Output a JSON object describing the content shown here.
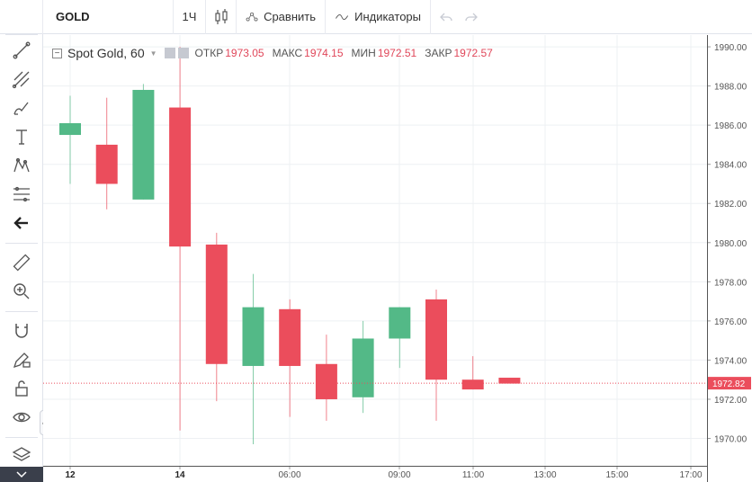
{
  "toolbar": {
    "symbol": "GOLD",
    "interval": "1Ч",
    "compare_label": "Сравнить",
    "indicators_label": "Индикаторы"
  },
  "left_toolbar": {
    "tools": [
      "crosshair-icon",
      "trendline-icon",
      "pitchfork-icon",
      "brush-icon",
      "text-icon",
      "pattern-icon",
      "fib-icon",
      "back-arrow-icon",
      "ruler-icon",
      "zoom-icon",
      "magnet-icon",
      "pencil-lock-icon",
      "lock-icon",
      "eye-icon",
      "layers-icon"
    ]
  },
  "legend": {
    "symbol": "Spot Gold, 60",
    "open_label": "ОТКР",
    "open_value": "1973.05",
    "high_label": "МАКС",
    "high_value": "1974.15",
    "low_label": "МИН",
    "low_value": "1972.51",
    "close_label": "ЗАКР",
    "close_value": "1972.57"
  },
  "chart_data": {
    "type": "candlestick",
    "candles": [
      {
        "open": 1985.5,
        "high": 1987.5,
        "low": 1983.0,
        "close": 1986.1
      },
      {
        "open": 1985.0,
        "high": 1987.4,
        "low": 1981.7,
        "close": 1983.0
      },
      {
        "open": 1982.2,
        "high": 1988.1,
        "low": 1982.2,
        "close": 1987.8
      },
      {
        "open": 1986.9,
        "high": 1990.0,
        "low": 1970.4,
        "close": 1979.8
      },
      {
        "open": 1979.9,
        "high": 1980.5,
        "low": 1971.9,
        "close": 1973.8
      },
      {
        "open": 1973.7,
        "high": 1978.4,
        "low": 1969.7,
        "close": 1976.7
      },
      {
        "open": 1976.6,
        "high": 1977.1,
        "low": 1971.1,
        "close": 1973.7
      },
      {
        "open": 1973.8,
        "high": 1975.3,
        "low": 1970.9,
        "close": 1972.0
      },
      {
        "open": 1972.1,
        "high": 1976.0,
        "low": 1971.3,
        "close": 1975.1
      },
      {
        "open": 1975.1,
        "high": 1976.7,
        "low": 1973.6,
        "close": 1976.7
      },
      {
        "open": 1977.1,
        "high": 1977.6,
        "low": 1970.9,
        "close": 1973.0
      },
      {
        "open": 1973.0,
        "high": 1974.2,
        "low": 1972.5,
        "close": 1972.5
      },
      {
        "open": 1973.1,
        "high": 1973.1,
        "low": 1972.8,
        "close": 1972.8
      }
    ],
    "y_ticks": [
      "1990.00",
      "1988.00",
      "1986.00",
      "1984.00",
      "1982.00",
      "1980.00",
      "1978.00",
      "1976.00",
      "1974.00",
      "1972.00",
      "1970.00"
    ],
    "x_ticks": [
      "12",
      "14",
      "06:00",
      "09:00",
      "11:00",
      "13:00",
      "15:00",
      "17:00"
    ],
    "x_ticks_bold": [
      "12",
      "14"
    ],
    "ylim": [
      1968.6,
      1990.6
    ],
    "current_price": "1972.82",
    "current_price_value": 1972.82,
    "grid": true,
    "colors": {
      "up": "#53b987",
      "down": "#eb4d5c",
      "grid": "#eef0f3",
      "price_label_bg": "#eb4d5c"
    }
  }
}
